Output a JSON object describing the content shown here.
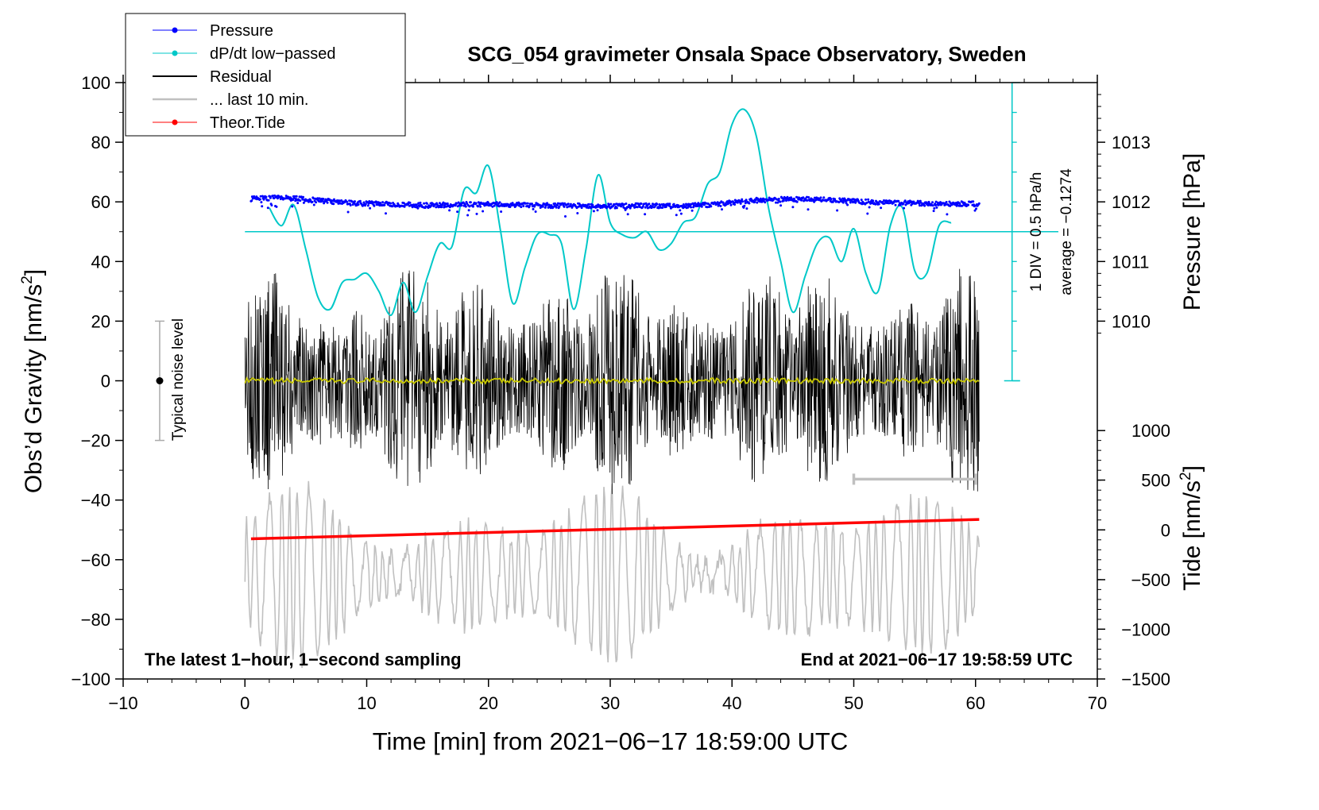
{
  "chart_data": {
    "type": "line",
    "title": "SCG_054 gravimeter Onsala Space Observatory, Sweden",
    "xlabel": "Time [min] from 2021−06−17 18:59:00 UTC",
    "ylabel": "Obs’d Gravity [nm/s",
    "ylabel_sup": "2",
    "ylabel_end": "]",
    "y2label_pressure": "Pressure [hPa]",
    "y2label_tide": "Tide [nm/s",
    "y2label_tide_sup": "2",
    "y2label_tide_end": "]",
    "xlim": [
      -10,
      70
    ],
    "ylim": [
      -100,
      100
    ],
    "x_ticks": [
      "−10",
      "0",
      "10",
      "20",
      "30",
      "40",
      "50",
      "60",
      "70"
    ],
    "x_tick_values": [
      -10,
      0,
      10,
      20,
      30,
      40,
      50,
      60,
      70
    ],
    "y_ticks": [
      "100",
      "80",
      "60",
      "40",
      "20",
      "0",
      "−20",
      "−40",
      "−60",
      "−80",
      "−100"
    ],
    "y_tick_values": [
      100,
      80,
      60,
      40,
      20,
      0,
      -20,
      -40,
      -60,
      -80,
      -100
    ],
    "pressure_axis": {
      "ticks": [
        "1013",
        "1012",
        "1011",
        "1010"
      ],
      "values": [
        1013,
        1012,
        1011,
        1010
      ],
      "gravity_equivalent": [
        80,
        60,
        40,
        20
      ]
    },
    "tide_axis": {
      "ticks": [
        "1000",
        "500",
        "0",
        "−500",
        "−1000",
        "−1500"
      ],
      "values": [
        1000,
        500,
        0,
        -500,
        -1000,
        -1500
      ],
      "gravity_equivalent": [
        -16.7,
        -33.3,
        -50,
        -66.7,
        -83.3,
        -100
      ]
    },
    "legend": [
      {
        "label": "Pressure",
        "color": "#0000ff",
        "marker": true
      },
      {
        "label": "dP/dt low−passed",
        "color": "#00c8c8",
        "marker": true
      },
      {
        "label": "Residual",
        "color": "#000000",
        "marker": false
      },
      {
        "label": "... last 10 min.",
        "color": "#c0c0c0",
        "marker": false
      },
      {
        "label": "Theor.Tide",
        "color": "#ff0000",
        "marker": true
      }
    ],
    "legend_position": "top-left",
    "dpdt_scale": {
      "label1": "1 DIV = 0.5 hPa/h",
      "label2": "average = −0.1274",
      "x": 63,
      "y_from": 0,
      "y_to": 100,
      "baseline_y": 50
    },
    "noise_level": {
      "label": "Typical noise level",
      "x": -7,
      "y_from": -20,
      "y_to": 20
    },
    "annotation_left": "The latest 1−hour, 1−second sampling",
    "annotation_right": "End at 2021−06−17 19:58:59 UTC",
    "last10_bar": {
      "x_from": 50,
      "x_to": 60,
      "y": -33
    },
    "series": [
      {
        "name": "Pressure",
        "color": "#0000ff",
        "x": [
          0.5,
          3,
          6,
          9,
          12,
          15,
          18,
          21,
          24,
          27,
          30,
          33,
          36,
          39,
          42,
          45,
          48,
          51,
          54,
          57,
          60.3
        ],
        "y": [
          61,
          61.5,
          60.5,
          59.5,
          59.3,
          58.8,
          59.2,
          59.1,
          58.8,
          58.7,
          58.6,
          58.7,
          58.5,
          59.3,
          60.5,
          61,
          60.6,
          60,
          59.6,
          59.4,
          59.3
        ]
      },
      {
        "name": "dP/dt low−passed",
        "color": "#00c8c8",
        "x": [
          2,
          3,
          4,
          5,
          6,
          7,
          8,
          9,
          10,
          11,
          12,
          13,
          14,
          15,
          16,
          17,
          18,
          19,
          20,
          21,
          22,
          23,
          24,
          25,
          26,
          27,
          28,
          29,
          30,
          31,
          32,
          33,
          34,
          35,
          36,
          37,
          38,
          39,
          40,
          41,
          42,
          43,
          44,
          45,
          46,
          47,
          48,
          49,
          50,
          51,
          52,
          53,
          54,
          55,
          56,
          57,
          58
        ],
        "y": [
          58,
          52,
          59,
          44,
          28,
          24,
          33,
          34,
          36,
          30,
          22,
          33,
          23,
          35,
          46,
          45,
          64,
          63,
          72,
          50,
          26,
          38,
          49,
          49,
          46,
          24,
          44,
          69,
          53,
          49,
          48,
          50,
          44,
          46,
          53,
          55,
          66,
          70,
          86,
          91,
          82,
          58,
          40,
          23,
          35,
          46,
          48,
          40,
          51,
          36,
          30,
          52,
          58,
          37,
          36,
          52,
          53
        ]
      },
      {
        "name": "Residual",
        "color": "#000000",
        "x_range": [
          0,
          60.3
        ],
        "amplitude": 40
      },
      {
        "name": "Residual smoothed",
        "color": "#c8c800",
        "x_range": [
          0,
          60.3
        ],
        "y": 0
      },
      {
        "name": "... last 10 min.",
        "color": "#c0c0c0",
        "x_range": [
          0,
          60.3
        ],
        "center": -65,
        "amplitude": 30
      },
      {
        "name": "Theor.Tide",
        "color": "#ff0000",
        "x": [
          0.5,
          60.3
        ],
        "y": [
          -53,
          -46.5
        ]
      }
    ]
  }
}
